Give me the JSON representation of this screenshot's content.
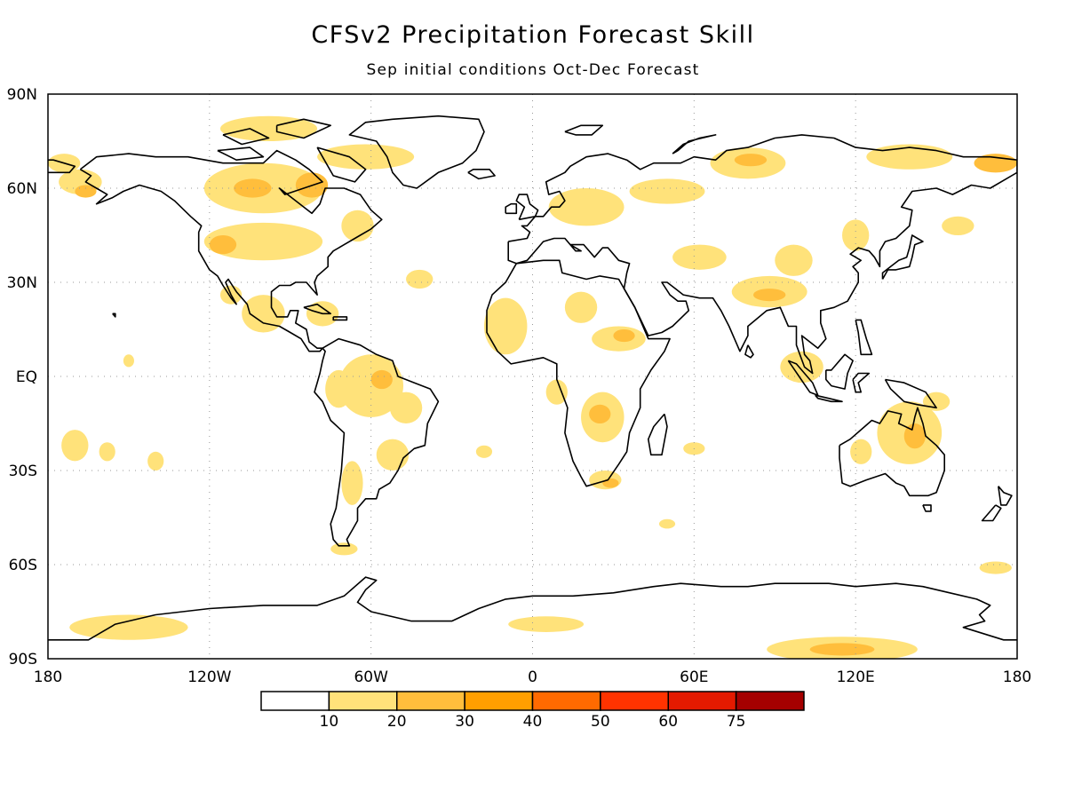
{
  "title": "CFSv2 Precipitation Forecast Skill",
  "subtitle": "Sep initial conditions   Oct-Dec Forecast",
  "axes": {
    "lat_labels": [
      "90N",
      "60N",
      "30N",
      "EQ",
      "30S",
      "60S",
      "90S"
    ],
    "lat_values": [
      90,
      60,
      30,
      0,
      -30,
      -60,
      -90
    ],
    "lon_labels": [
      "180",
      "120W",
      "60W",
      "0",
      "60E",
      "120E",
      "180"
    ],
    "lon_values": [
      -180,
      -120,
      -60,
      0,
      60,
      120,
      180
    ]
  },
  "grid": true,
  "colorbar": {
    "bounds": [
      "10",
      "20",
      "30",
      "40",
      "50",
      "60",
      "75"
    ],
    "colors": [
      "#ffffff",
      "#ffe27a",
      "#ffbe3c",
      "#ff9f00",
      "#ff6a00",
      "#ff3300",
      "#e41a00",
      "#a50000"
    ]
  },
  "skill_regions": [
    {
      "lon": -168,
      "lat": 62,
      "rlon": 8,
      "rlat": 4,
      "level": 1
    },
    {
      "lon": -166,
      "lat": 59,
      "rlon": 4,
      "rlat": 2,
      "level": 2
    },
    {
      "lon": -174,
      "lat": 68,
      "rlon": 6,
      "rlat": 3,
      "level": 1
    },
    {
      "lon": -100,
      "lat": 60,
      "rlon": 22,
      "rlat": 8,
      "level": 1
    },
    {
      "lon": -104,
      "lat": 60,
      "rlon": 7,
      "rlat": 3,
      "level": 2
    },
    {
      "lon": -82,
      "lat": 61,
      "rlon": 6,
      "rlat": 4,
      "level": 2
    },
    {
      "lon": -100,
      "lat": 43,
      "rlon": 22,
      "rlat": 6,
      "level": 1
    },
    {
      "lon": -115,
      "lat": 42,
      "rlon": 5,
      "rlat": 3,
      "level": 2
    },
    {
      "lon": -98,
      "lat": 79,
      "rlon": 18,
      "rlat": 4,
      "level": 1
    },
    {
      "lon": -62,
      "lat": 70,
      "rlon": 18,
      "rlat": 4,
      "level": 1
    },
    {
      "lon": -65,
      "lat": 48,
      "rlon": 6,
      "rlat": 5,
      "level": 1
    },
    {
      "lon": -100,
      "lat": 20,
      "rlon": 8,
      "rlat": 6,
      "level": 1
    },
    {
      "lon": -112,
      "lat": 26,
      "rlon": 4,
      "rlat": 3,
      "level": 1
    },
    {
      "lon": -78,
      "lat": 20,
      "rlon": 6,
      "rlat": 4,
      "level": 1
    },
    {
      "lon": -60,
      "lat": -3,
      "rlon": 12,
      "rlat": 10,
      "level": 1
    },
    {
      "lon": -56,
      "lat": -1,
      "rlon": 4,
      "rlat": 3,
      "level": 2
    },
    {
      "lon": -72,
      "lat": -4,
      "rlon": 5,
      "rlat": 6,
      "level": 1
    },
    {
      "lon": -47,
      "lat": -10,
      "rlon": 6,
      "rlat": 5,
      "level": 1
    },
    {
      "lon": -52,
      "lat": -25,
      "rlon": 6,
      "rlat": 5,
      "level": 1
    },
    {
      "lon": -67,
      "lat": -34,
      "rlon": 4,
      "rlat": 7,
      "level": 1
    },
    {
      "lon": -70,
      "lat": -55,
      "rlon": 5,
      "rlat": 2,
      "level": 1
    },
    {
      "lon": -42,
      "lat": 31,
      "rlon": 5,
      "rlat": 3,
      "level": 1
    },
    {
      "lon": -10,
      "lat": 16,
      "rlon": 8,
      "rlat": 9,
      "level": 1
    },
    {
      "lon": 18,
      "lat": 22,
      "rlon": 6,
      "rlat": 5,
      "level": 1
    },
    {
      "lon": 32,
      "lat": 12,
      "rlon": 10,
      "rlat": 4,
      "level": 1
    },
    {
      "lon": 34,
      "lat": 13,
      "rlon": 4,
      "rlat": 2,
      "level": 2
    },
    {
      "lon": 26,
      "lat": -13,
      "rlon": 8,
      "rlat": 8,
      "level": 1
    },
    {
      "lon": 25,
      "lat": -12,
      "rlon": 4,
      "rlat": 3,
      "level": 2
    },
    {
      "lon": 27,
      "lat": -33,
      "rlon": 6,
      "rlat": 3,
      "level": 1
    },
    {
      "lon": 29,
      "lat": -34,
      "rlon": 3,
      "rlat": 1.5,
      "level": 2
    },
    {
      "lon": 9,
      "lat": -5,
      "rlon": 4,
      "rlat": 4,
      "level": 1
    },
    {
      "lon": 60,
      "lat": -23,
      "rlon": 4,
      "rlat": 2,
      "level": 1
    },
    {
      "lon": 20,
      "lat": 54,
      "rlon": 14,
      "rlat": 6,
      "level": 1
    },
    {
      "lon": 50,
      "lat": 59,
      "rlon": 14,
      "rlat": 4,
      "level": 1
    },
    {
      "lon": 80,
      "lat": 68,
      "rlon": 14,
      "rlat": 5,
      "level": 1
    },
    {
      "lon": 81,
      "lat": 69,
      "rlon": 6,
      "rlat": 2,
      "level": 2
    },
    {
      "lon": 140,
      "lat": 70,
      "rlon": 16,
      "rlat": 4,
      "level": 1
    },
    {
      "lon": 172,
      "lat": 68,
      "rlon": 8,
      "rlat": 3,
      "level": 2
    },
    {
      "lon": 62,
      "lat": 38,
      "rlon": 10,
      "rlat": 4,
      "level": 1
    },
    {
      "lon": 88,
      "lat": 27,
      "rlon": 14,
      "rlat": 5,
      "level": 1
    },
    {
      "lon": 88,
      "lat": 26,
      "rlon": 6,
      "rlat": 2,
      "level": 2
    },
    {
      "lon": 97,
      "lat": 37,
      "rlon": 7,
      "rlat": 5,
      "level": 1
    },
    {
      "lon": 100,
      "lat": 3,
      "rlon": 8,
      "rlat": 5,
      "level": 1
    },
    {
      "lon": 120,
      "lat": 45,
      "rlon": 5,
      "rlat": 5,
      "level": 1
    },
    {
      "lon": 140,
      "lat": -18,
      "rlon": 12,
      "rlat": 10,
      "level": 1
    },
    {
      "lon": 142,
      "lat": -19,
      "rlon": 4,
      "rlat": 4,
      "level": 2
    },
    {
      "lon": 122,
      "lat": -24,
      "rlon": 4,
      "rlat": 4,
      "level": 1
    },
    {
      "lon": 150,
      "lat": -8,
      "rlon": 5,
      "rlat": 3,
      "level": 1
    },
    {
      "lon": 158,
      "lat": 48,
      "rlon": 6,
      "rlat": 3,
      "level": 1
    },
    {
      "lon": 172,
      "lat": -61,
      "rlon": 6,
      "rlat": 2,
      "level": 1
    },
    {
      "lon": 115,
      "lat": -87,
      "rlon": 28,
      "rlat": 4,
      "level": 1
    },
    {
      "lon": 115,
      "lat": -87,
      "rlon": 12,
      "rlat": 2,
      "level": 2
    },
    {
      "lon": 5,
      "lat": -79,
      "rlon": 14,
      "rlat": 2.5,
      "level": 1
    },
    {
      "lon": -150,
      "lat": -80,
      "rlon": 22,
      "rlat": 4,
      "level": 1
    },
    {
      "lon": -170,
      "lat": -22,
      "rlon": 5,
      "rlat": 5,
      "level": 1
    },
    {
      "lon": -158,
      "lat": -24,
      "rlon": 3,
      "rlat": 3,
      "level": 1
    },
    {
      "lon": -140,
      "lat": -27,
      "rlon": 3,
      "rlat": 3,
      "level": 1
    },
    {
      "lon": -150,
      "lat": 5,
      "rlon": 2,
      "rlat": 2,
      "level": 1
    },
    {
      "lon": -18,
      "lat": -24,
      "rlon": 3,
      "rlat": 2,
      "level": 1
    },
    {
      "lon": 50,
      "lat": -47,
      "rlon": 3,
      "rlat": 1.5,
      "level": 1
    }
  ]
}
